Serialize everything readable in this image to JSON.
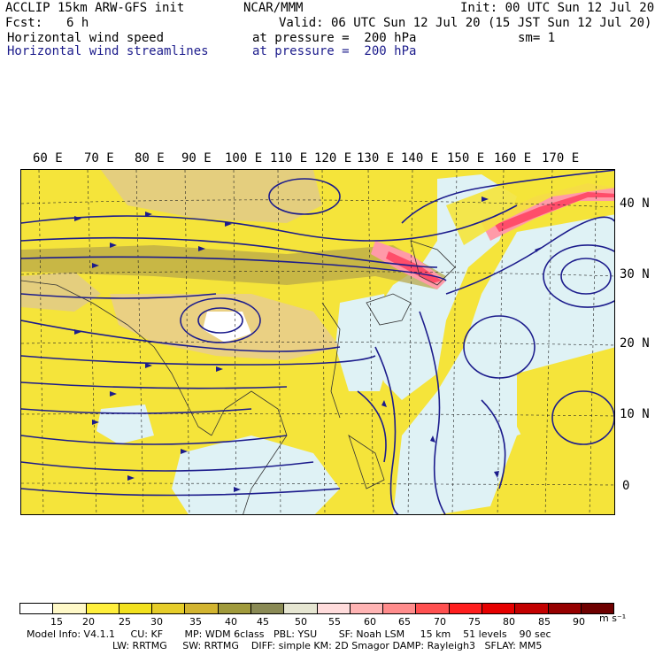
{
  "header": {
    "model": "ACCLIP 15km ARW-GFS init",
    "org": "NCAR/MMM",
    "init": "Init: 00 UTC Sun 12 Jul 20",
    "fcst_label": "Fcst:",
    "fcst_value": "6 h",
    "valid": "Valid: 06 UTC Sun 12 Jul 20 (15 JST Sun 12 Jul 20)",
    "field1_name": "Horizontal wind speed",
    "field1_level": "at pressure =  200 hPa",
    "smoothing": "sm= 1",
    "field2_name": "Horizontal wind streamlines",
    "field2_level": "at pressure =  200 hPa"
  },
  "map": {
    "lon_labels": [
      "60 E",
      "70 E",
      "80 E",
      "90 E",
      "100 E",
      "110 E",
      "120 E",
      "130 E",
      "140 E",
      "150 E",
      "160 E",
      "170 E"
    ],
    "lat_labels": [
      "40 N",
      "30 N",
      "20 N",
      "10 N",
      "0"
    ]
  },
  "colorbar": {
    "levels": [
      "15",
      "20",
      "25",
      "30",
      "35",
      "40",
      "45",
      "50",
      "55",
      "60",
      "65",
      "70",
      "75",
      "80",
      "85",
      "90"
    ],
    "colors": [
      "#ffffff",
      "#fff9c8",
      "#ffef3c",
      "#f2e11e",
      "#e6cd2a",
      "#d2b430",
      "#a09a3c",
      "#8a8a55",
      "#e6e6d2",
      "#ffdcdc",
      "#ffb4b4",
      "#ff8c8c",
      "#ff5050",
      "#ff1e1e",
      "#e60000",
      "#c30000",
      "#960000",
      "#6e0000"
    ],
    "units": "m s⁻¹"
  },
  "footer": {
    "line1": "Model Info: V4.1.1     CU: KF       MP: WDM 6class   PBL: YSU       SF: Noah LSM     15 km    51 levels    90 sec",
    "line2": "LW: RRTMG     SW: RRTMG    DIFF: simple KM: 2D Smagor DAMP: Rayleigh3   SFLAY: MM5"
  }
}
